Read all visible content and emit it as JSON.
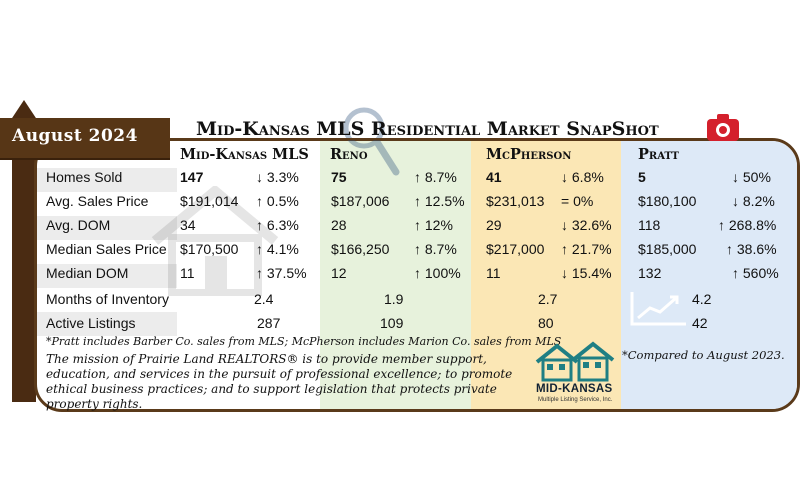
{
  "banner": "August 2024",
  "title": "Mid-Kansas MLS Residential Market SnapShot",
  "columns": [
    "Mid-Kansas MLS",
    "Reno",
    "McPherson",
    "Pratt"
  ],
  "rows": [
    {
      "label": "Homes Sold",
      "cells": [
        {
          "value": "147",
          "change": "↓ 3.3%"
        },
        {
          "value": "75",
          "change": "↑ 8.7%"
        },
        {
          "value": "41",
          "change": "↓ 6.8%"
        },
        {
          "value": "5",
          "change": "↓ 50%"
        }
      ]
    },
    {
      "label": "Avg. Sales Price",
      "cells": [
        {
          "value": "$191,014",
          "change": "↑ 0.5%"
        },
        {
          "value": "$187,006",
          "change": "↑ 12.5%"
        },
        {
          "value": "$231,013",
          "change": "= 0%"
        },
        {
          "value": "$180,100",
          "change": "↓ 8.2%"
        }
      ]
    },
    {
      "label": "Avg. DOM",
      "cells": [
        {
          "value": "34",
          "change": "↑ 6.3%"
        },
        {
          "value": "28",
          "change": "↑ 12%"
        },
        {
          "value": "29",
          "change": "↓ 32.6%"
        },
        {
          "value": "118",
          "change": "↑ 268.8%"
        }
      ]
    },
    {
      "label": "Median Sales Price",
      "cells": [
        {
          "value": "$170,500",
          "change": "↑ 4.1%"
        },
        {
          "value": "$166,250",
          "change": "↑ 8.7%"
        },
        {
          "value": "$217,000",
          "change": "↑ 21.7%"
        },
        {
          "value": "$185,000",
          "change": "↑ 38.6%"
        }
      ]
    },
    {
      "label": "Median DOM",
      "cells": [
        {
          "value": "11",
          "change": "↑ 37.5%"
        },
        {
          "value": "12",
          "change": "↑ 100%"
        },
        {
          "value": "11",
          "change": "↓ 15.4%"
        },
        {
          "value": "132",
          "change": "↑ 560%"
        }
      ]
    },
    {
      "label": "Months of Inventory",
      "cells": [
        {
          "value": "2.4"
        },
        {
          "value": "1.9"
        },
        {
          "value": "2.7"
        },
        {
          "value": "4.2"
        }
      ]
    },
    {
      "label": "Active Listings",
      "cells": [
        {
          "value": "287"
        },
        {
          "value": "109"
        },
        {
          "value": "80"
        },
        {
          "value": "42"
        }
      ]
    }
  ],
  "footnote": "*Pratt includes Barber Co. sales from MLS; McPherson includes Marion Co. sales from MLS",
  "mission": "The mission of Prairie Land REALTORS® is to provide member support, education, and services in the pursuit of professional excellence; to promote ethical business practices; and to support legislation that protects private property rights.",
  "compared": "*Compared to August 2023.",
  "logo": {
    "name": "MID-KANSAS",
    "sub": "Multiple Listing Service, Inc."
  },
  "colors": {
    "brown": "#5a3a1a",
    "reno": "#e7f2dc",
    "mcpherson": "#fbe7b5",
    "pratt": "#dde9f7"
  }
}
